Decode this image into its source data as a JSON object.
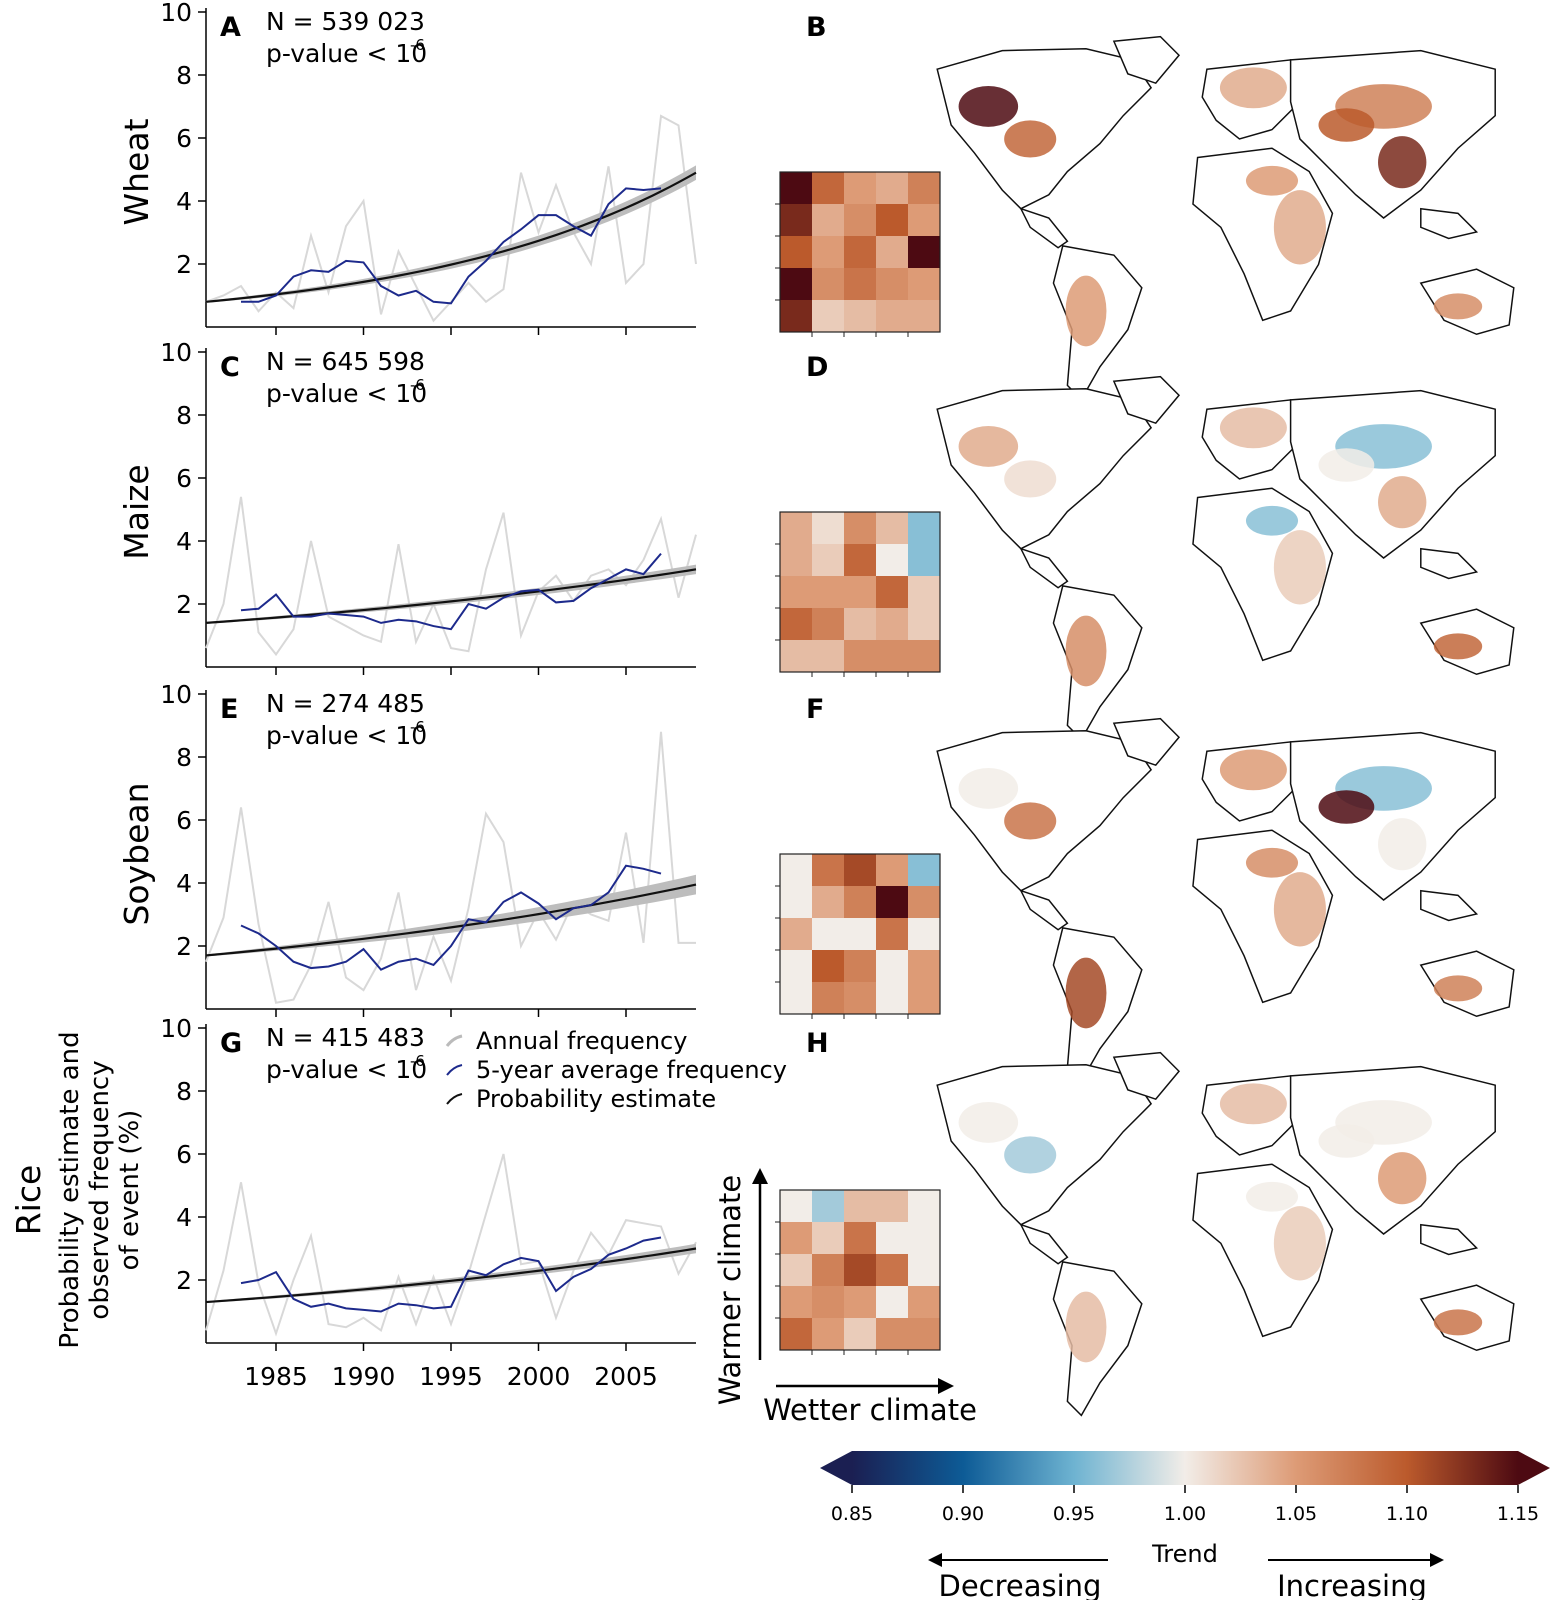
{
  "colors": {
    "annual": "#d8d8d8",
    "avg5": "#1d2a8c",
    "prob": "#111111",
    "band": "#bdbdbd",
    "land_fill": "#ffffff",
    "coast": "#111111"
  },
  "axes": {
    "year_ticks": [
      "1985",
      "1990",
      "1995",
      "2000",
      "2005"
    ],
    "y_ticks": [
      "10",
      "8",
      "6",
      "4",
      "2"
    ],
    "ylabel_lines": [
      "Probability estimate and",
      "observed frequency",
      "of event (%)"
    ]
  },
  "legend": {
    "items": [
      "Annual frequency",
      "5-year average frequency",
      "Probability estimate"
    ]
  },
  "grid_axes": {
    "y": "Warmer climate",
    "x": "Wetter climate"
  },
  "colorbar": {
    "ticks": [
      "0.85",
      "0.90",
      "0.95",
      "1.00",
      "1.05",
      "1.10",
      "1.15"
    ],
    "title": "Trend",
    "left_label": "Decreasing",
    "right_label": "Increasing",
    "range": [
      0.85,
      1.15
    ],
    "stops": [
      {
        "v": 0.85,
        "c": "#1b1f52"
      },
      {
        "v": 0.9,
        "c": "#0d5b96"
      },
      {
        "v": 0.95,
        "c": "#6eb3d1"
      },
      {
        "v": 1.0,
        "c": "#f2ede8"
      },
      {
        "v": 1.05,
        "c": "#dd9b76"
      },
      {
        "v": 1.1,
        "c": "#bb5a2c"
      },
      {
        "v": 1.15,
        "c": "#4d0a12"
      }
    ]
  },
  "chart_data": [
    {
      "type": "line",
      "crop": "Wheat",
      "panel": "A",
      "map_panel": "B",
      "n_text": "N = 539 023",
      "p_text": "p-value < 10",
      "p_exp": "-6",
      "xlim": [
        1981,
        2009
      ],
      "ylim": [
        0,
        10
      ],
      "annual": {
        "x": [
          1981,
          1982,
          1983,
          1984,
          1985,
          1986,
          1987,
          1988,
          1989,
          1990,
          1991,
          1992,
          1993,
          1994,
          1995,
          1996,
          1997,
          1998,
          1999,
          2000,
          2001,
          2002,
          2003,
          2004,
          2005,
          2006,
          2007,
          2008,
          2009
        ],
        "y": [
          0.8,
          1.0,
          1.3,
          0.5,
          1.1,
          0.6,
          2.9,
          1.1,
          3.2,
          4.0,
          0.4,
          2.4,
          1.3,
          0.2,
          0.8,
          1.4,
          0.8,
          1.2,
          4.9,
          3.0,
          4.5,
          3.0,
          2.0,
          5.1,
          1.4,
          2.0,
          6.7,
          6.4,
          2.0
        ]
      },
      "avg5": {
        "x": [
          1983,
          1984,
          1985,
          1986,
          1987,
          1988,
          1989,
          1990,
          1991,
          1992,
          1993,
          1994,
          1995,
          1996,
          1997,
          1998,
          1999,
          2000,
          2001,
          2002,
          2003,
          2004,
          2005,
          2006,
          2007
        ],
        "y": [
          0.8,
          0.8,
          1.0,
          1.6,
          1.8,
          1.75,
          2.1,
          2.05,
          1.3,
          1.0,
          1.15,
          0.8,
          0.75,
          1.6,
          2.1,
          2.7,
          3.1,
          3.55,
          3.55,
          3.2,
          2.9,
          3.9,
          4.4,
          4.35,
          4.4
        ]
      },
      "prob": {
        "start": 0.8,
        "end": 4.9,
        "band_end": 0.2
      },
      "grid": [
        [
          1.15,
          1.09,
          1.05,
          1.04,
          1.07
        ],
        [
          1.13,
          1.04,
          1.06,
          1.1,
          1.05
        ],
        [
          1.1,
          1.05,
          1.09,
          1.04,
          1.15
        ],
        [
          1.15,
          1.06,
          1.08,
          1.06,
          1.05
        ],
        [
          1.13,
          1.02,
          1.03,
          1.04,
          1.04
        ]
      ]
    },
    {
      "type": "line",
      "crop": "Maize",
      "panel": "C",
      "map_panel": "D",
      "n_text": "N = 645 598",
      "p_text": "p-value < 10",
      "p_exp": "-6",
      "xlim": [
        1981,
        2009
      ],
      "ylim": [
        0,
        10
      ],
      "annual": {
        "x": [
          1981,
          1982,
          1983,
          1984,
          1985,
          1986,
          1987,
          1988,
          1989,
          1990,
          1991,
          1992,
          1993,
          1994,
          1995,
          1996,
          1997,
          1998,
          1999,
          2000,
          2001,
          2002,
          2003,
          2004,
          2005,
          2006,
          2007,
          2008,
          2009
        ],
        "y": [
          0.6,
          2.0,
          5.4,
          1.1,
          0.4,
          1.2,
          4.0,
          1.6,
          1.3,
          1.0,
          0.8,
          3.9,
          0.8,
          2.0,
          0.6,
          0.5,
          3.1,
          4.9,
          1.0,
          2.4,
          2.9,
          2.1,
          2.9,
          3.1,
          2.6,
          3.4,
          4.7,
          2.2,
          4.2
        ]
      },
      "avg5": {
        "x": [
          1983,
          1984,
          1985,
          1986,
          1987,
          1988,
          1989,
          1990,
          1991,
          1992,
          1993,
          1994,
          1995,
          1996,
          1997,
          1998,
          1999,
          2000,
          2001,
          2002,
          2003,
          2004,
          2005,
          2006,
          2007
        ],
        "y": [
          1.8,
          1.85,
          2.3,
          1.6,
          1.6,
          1.7,
          1.65,
          1.6,
          1.4,
          1.5,
          1.45,
          1.3,
          1.2,
          2.0,
          1.85,
          2.2,
          2.4,
          2.45,
          2.05,
          2.1,
          2.5,
          2.8,
          3.1,
          2.95,
          3.6
        ]
      },
      "prob": {
        "start": 1.4,
        "end": 3.1,
        "band_end": 0.12
      },
      "grid": [
        [
          1.04,
          1.01,
          1.06,
          1.03,
          0.96
        ],
        [
          1.04,
          1.02,
          1.09,
          1.0,
          0.96
        ],
        [
          1.05,
          1.05,
          1.05,
          1.09,
          1.02
        ],
        [
          1.09,
          1.07,
          1.03,
          1.04,
          1.02
        ],
        [
          1.03,
          1.03,
          1.06,
          1.06,
          1.06
        ]
      ]
    },
    {
      "type": "line",
      "crop": "Soybean",
      "panel": "E",
      "map_panel": "F",
      "n_text": "N = 274 485",
      "p_text": "p-value < 10",
      "p_exp": "-6",
      "xlim": [
        1981,
        2009
      ],
      "ylim": [
        0,
        10
      ],
      "annual": {
        "x": [
          1981,
          1982,
          1983,
          1984,
          1985,
          1986,
          1987,
          1988,
          1989,
          1990,
          1991,
          1992,
          1993,
          1994,
          1995,
          1996,
          1997,
          1998,
          1999,
          2000,
          2001,
          2002,
          2003,
          2004,
          2005,
          2006,
          2007,
          2008,
          2009
        ],
        "y": [
          1.5,
          2.9,
          6.4,
          2.7,
          0.2,
          0.3,
          1.4,
          3.4,
          1.0,
          0.6,
          1.6,
          3.7,
          0.6,
          2.3,
          0.9,
          3.2,
          6.2,
          5.3,
          2.0,
          3.1,
          2.2,
          3.4,
          3.0,
          2.8,
          5.6,
          2.1,
          8.8,
          2.1,
          2.1
        ]
      },
      "avg5": {
        "x": [
          1983,
          1984,
          1985,
          1986,
          1987,
          1988,
          1989,
          1990,
          1991,
          1992,
          1993,
          1994,
          1995,
          1996,
          1997,
          1998,
          1999,
          2000,
          2001,
          2002,
          2003,
          2004,
          2005,
          2006,
          2007
        ],
        "y": [
          2.65,
          2.4,
          2.0,
          1.5,
          1.3,
          1.35,
          1.5,
          1.9,
          1.25,
          1.5,
          1.6,
          1.4,
          2.0,
          2.85,
          2.75,
          3.4,
          3.7,
          3.35,
          2.85,
          3.2,
          3.3,
          3.7,
          4.55,
          4.45,
          4.3
        ]
      },
      "prob": {
        "start": 1.7,
        "end": 3.95,
        "band_end": 0.28
      },
      "grid": [
        [
          1.0,
          1.08,
          1.11,
          1.05,
          0.96
        ],
        [
          1.0,
          1.04,
          1.07,
          1.15,
          1.06
        ],
        [
          1.04,
          1.0,
          1.0,
          1.08,
          1.0
        ],
        [
          1.0,
          1.1,
          1.07,
          1.0,
          1.05
        ],
        [
          1.0,
          1.07,
          1.06,
          1.0,
          1.05
        ]
      ]
    },
    {
      "type": "line",
      "crop": "Rice",
      "panel": "G",
      "map_panel": "H",
      "n_text": "N = 415 483",
      "p_text": "p-value < 10",
      "p_exp": "-6",
      "xlim": [
        1981,
        2009
      ],
      "ylim": [
        0,
        10
      ],
      "annual": {
        "x": [
          1981,
          1982,
          1983,
          1984,
          1985,
          1986,
          1987,
          1988,
          1989,
          1990,
          1991,
          1992,
          1993,
          1994,
          1995,
          1996,
          1997,
          1998,
          1999,
          2000,
          2001,
          2002,
          2003,
          2004,
          2005,
          2006,
          2007,
          2008,
          2009
        ],
        "y": [
          0.4,
          2.3,
          5.1,
          1.9,
          0.3,
          2.0,
          3.4,
          0.6,
          0.5,
          0.8,
          0.4,
          2.1,
          0.6,
          2.1,
          0.6,
          2.2,
          4.1,
          6.0,
          2.5,
          2.6,
          0.8,
          2.3,
          3.5,
          2.8,
          3.9,
          3.8,
          3.7,
          2.2,
          3.2
        ]
      },
      "avg5": {
        "x": [
          1983,
          1984,
          1985,
          1986,
          1987,
          1988,
          1989,
          1990,
          1991,
          1992,
          1993,
          1994,
          1995,
          1996,
          1997,
          1998,
          1999,
          2000,
          2001,
          2002,
          2003,
          2004,
          2005,
          2006,
          2007
        ],
        "y": [
          1.9,
          2.0,
          2.25,
          1.4,
          1.15,
          1.25,
          1.1,
          1.05,
          1.0,
          1.25,
          1.2,
          1.1,
          1.15,
          2.3,
          2.15,
          2.5,
          2.7,
          2.6,
          1.65,
          2.1,
          2.35,
          2.8,
          3.0,
          3.25,
          3.35
        ]
      },
      "prob": {
        "start": 1.3,
        "end": 3.0,
        "band_end": 0.12
      },
      "grid": [
        [
          1.0,
          0.97,
          1.03,
          1.03,
          1.0
        ],
        [
          1.05,
          1.02,
          1.08,
          1.0,
          1.0
        ],
        [
          1.02,
          1.07,
          1.11,
          1.08,
          1.0
        ],
        [
          1.05,
          1.06,
          1.05,
          1.0,
          1.05
        ],
        [
          1.09,
          1.05,
          1.02,
          1.06,
          1.06
        ]
      ]
    }
  ]
}
